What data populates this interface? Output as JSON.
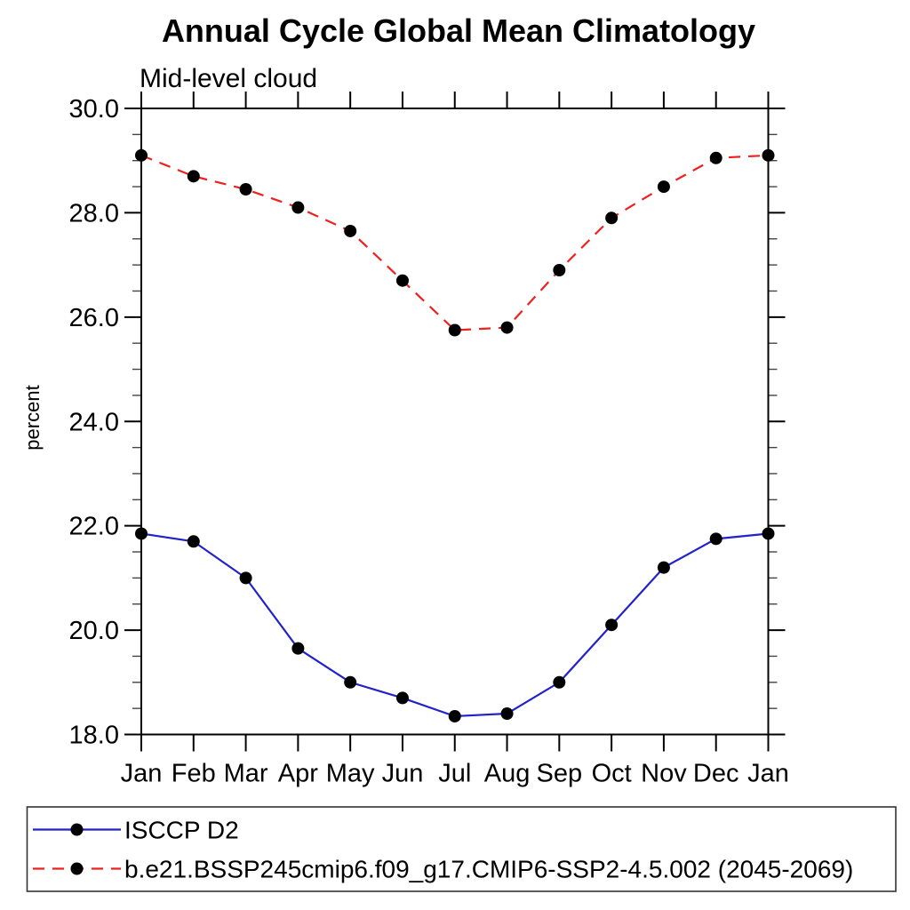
{
  "title": "Annual Cycle Global Mean Climatology",
  "subtitle": "Mid-level cloud",
  "ylabel": "percent",
  "colors": {
    "background": "#ffffff",
    "axis": "#000000",
    "minor_tick": "#444444",
    "marker": "#000000",
    "series1": "#2222cc",
    "series2": "#ee2020",
    "legend_border": "#333333"
  },
  "chart_data": {
    "type": "line",
    "categories": [
      "Jan",
      "Feb",
      "Mar",
      "Apr",
      "May",
      "Jun",
      "Jul",
      "Aug",
      "Sep",
      "Oct",
      "Nov",
      "Dec",
      "Jan"
    ],
    "xlabel": "",
    "ylabel": "percent",
    "ylim": [
      18.0,
      30.0
    ],
    "ytick_interval": 2.0,
    "ytick_minor_interval": 0.5,
    "ytick_labels": [
      "18.0",
      "20.0",
      "22.0",
      "24.0",
      "26.0",
      "28.0",
      "30.0"
    ],
    "grid": false,
    "legend_position": "bottom-left-box",
    "series": [
      {
        "name": "ISCCP D2",
        "color": "#2222cc",
        "line_style": "solid",
        "marker": "filled-circle",
        "marker_color": "#000000",
        "values": [
          21.85,
          21.7,
          21.0,
          19.65,
          19.0,
          18.7,
          18.35,
          18.4,
          19.0,
          20.1,
          21.2,
          21.75,
          21.85
        ]
      },
      {
        "name": "b.e21.BSSP245cmip6.f09_g17.CMIP6-SSP2-4.5.002 (2045-2069)",
        "color": "#ee2020",
        "line_style": "dashed",
        "marker": "filled-circle",
        "marker_color": "#000000",
        "values": [
          29.1,
          28.7,
          28.45,
          28.1,
          27.65,
          26.7,
          25.75,
          25.8,
          26.9,
          27.9,
          28.5,
          29.05,
          29.1
        ]
      }
    ]
  }
}
